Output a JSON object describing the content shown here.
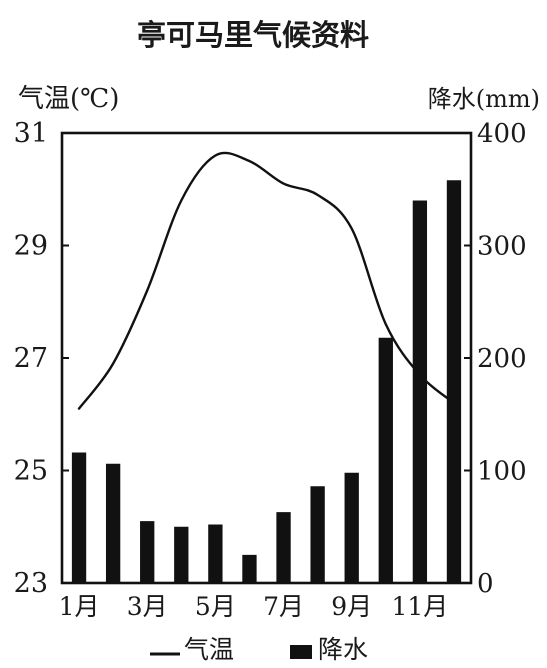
{
  "chart_data": {
    "type": "bar+line",
    "title": "亭可马里气候资料",
    "categories": [
      "1月",
      "2月",
      "3月",
      "4月",
      "5月",
      "6月",
      "7月",
      "8月",
      "9月",
      "10月",
      "11月",
      "12月"
    ],
    "x_tick_labels": [
      "1月",
      "3月",
      "5月",
      "7月",
      "9月",
      "11月"
    ],
    "temperature": {
      "name": "气温",
      "axis_label": "气温(℃)",
      "unit": "℃",
      "ylim": [
        23,
        31
      ],
      "ticks": [
        23,
        25,
        27,
        29,
        31
      ],
      "values": [
        26.1,
        26.9,
        28.2,
        29.8,
        30.6,
        30.5,
        30.1,
        29.9,
        29.3,
        27.6,
        26.7,
        26.2
      ]
    },
    "precipitation": {
      "name": "降水",
      "axis_label": "降水(mm)",
      "unit": "mm",
      "ylim": [
        0,
        400
      ],
      "ticks": [
        0,
        100,
        200,
        300,
        400
      ],
      "values": [
        116,
        106,
        55,
        50,
        52,
        25,
        63,
        86,
        98,
        218,
        340,
        358
      ]
    },
    "legend": {
      "placement": "bottom-center",
      "line_label": "气温",
      "bar_label": "降水"
    },
    "colors": {
      "bar": "#111111",
      "line": "#111111",
      "axis": "#111111"
    }
  }
}
